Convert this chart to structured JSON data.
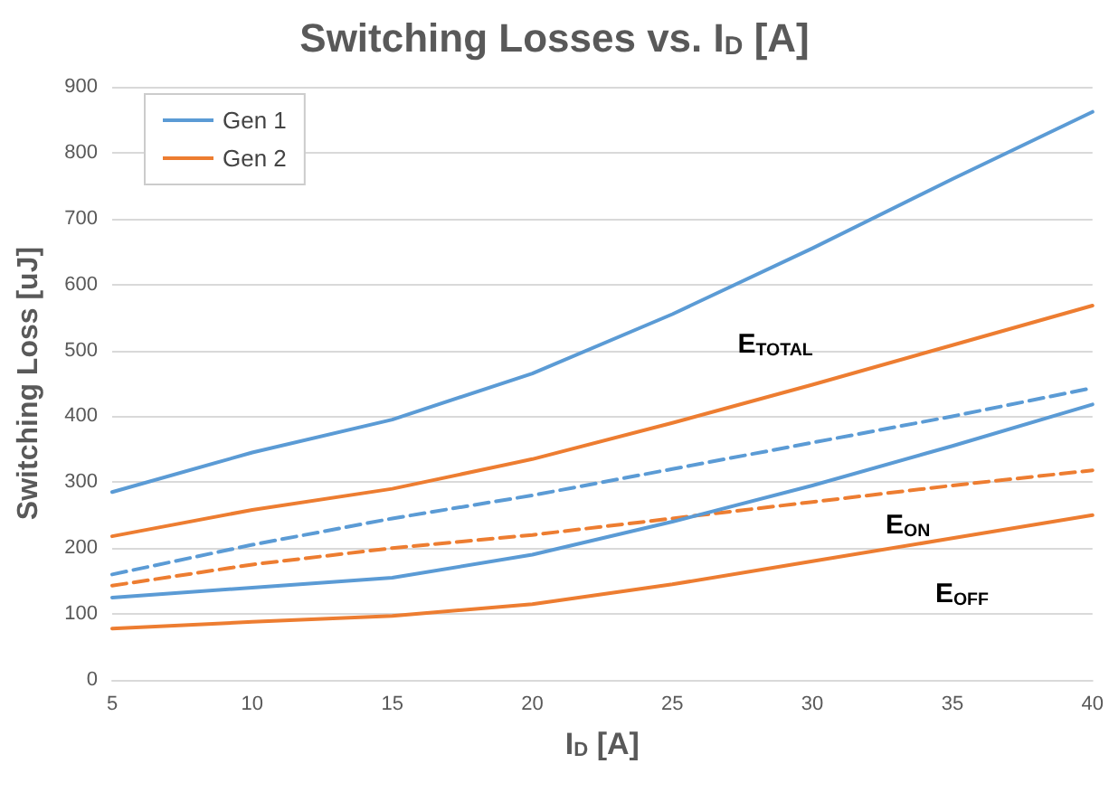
{
  "chart_data": {
    "type": "line",
    "title": "Switching Losses vs. I$_{D}$ [A]",
    "xlabel": "I$_{D}$ [A]",
    "ylabel": "Switching Loss [uJ]",
    "x": [
      5,
      10,
      15,
      20,
      25,
      30,
      35,
      40
    ],
    "series": [
      {
        "name": "Gen 1",
        "color": "#5b9bd5",
        "values": [
          285,
          345,
          395,
          465,
          555,
          655,
          760,
          862
        ]
      },
      {
        "name": "Gen 2",
        "color": "#ed7d31",
        "values": [
          218,
          258,
          290,
          335,
          390,
          448,
          508,
          568
        ]
      },
      {
        "color": "#5b9bd5",
        "line_style": "dashed",
        "values": [
          160,
          205,
          245,
          280,
          320,
          360,
          400,
          443
        ]
      },
      {
        "color": "#ed7d31",
        "line_style": "dashed",
        "values": [
          143,
          175,
          200,
          220,
          245,
          270,
          295,
          318
        ]
      },
      {
        "color": "#5b9bd5",
        "values": [
          125,
          140,
          155,
          190,
          240,
          295,
          355,
          418
        ]
      },
      {
        "color": "#ed7d31",
        "values": [
          78,
          88,
          97,
          115,
          145,
          180,
          215,
          250
        ]
      }
    ],
    "annotations": [
      "E$_{TOTAL}$",
      "E$_{ON}$",
      "E$_{OFF}$"
    ],
    "xlim": [
      5,
      40
    ],
    "xticks": [
      5,
      10,
      15,
      20,
      25,
      30,
      35,
      40
    ],
    "ylim": [
      0,
      900
    ],
    "yticks": [
      0,
      100,
      200,
      300,
      400,
      500,
      600,
      700,
      800,
      900
    ],
    "grid": "y",
    "legend": "top left",
    "marker": "none",
    "line_style": "solid"
  }
}
